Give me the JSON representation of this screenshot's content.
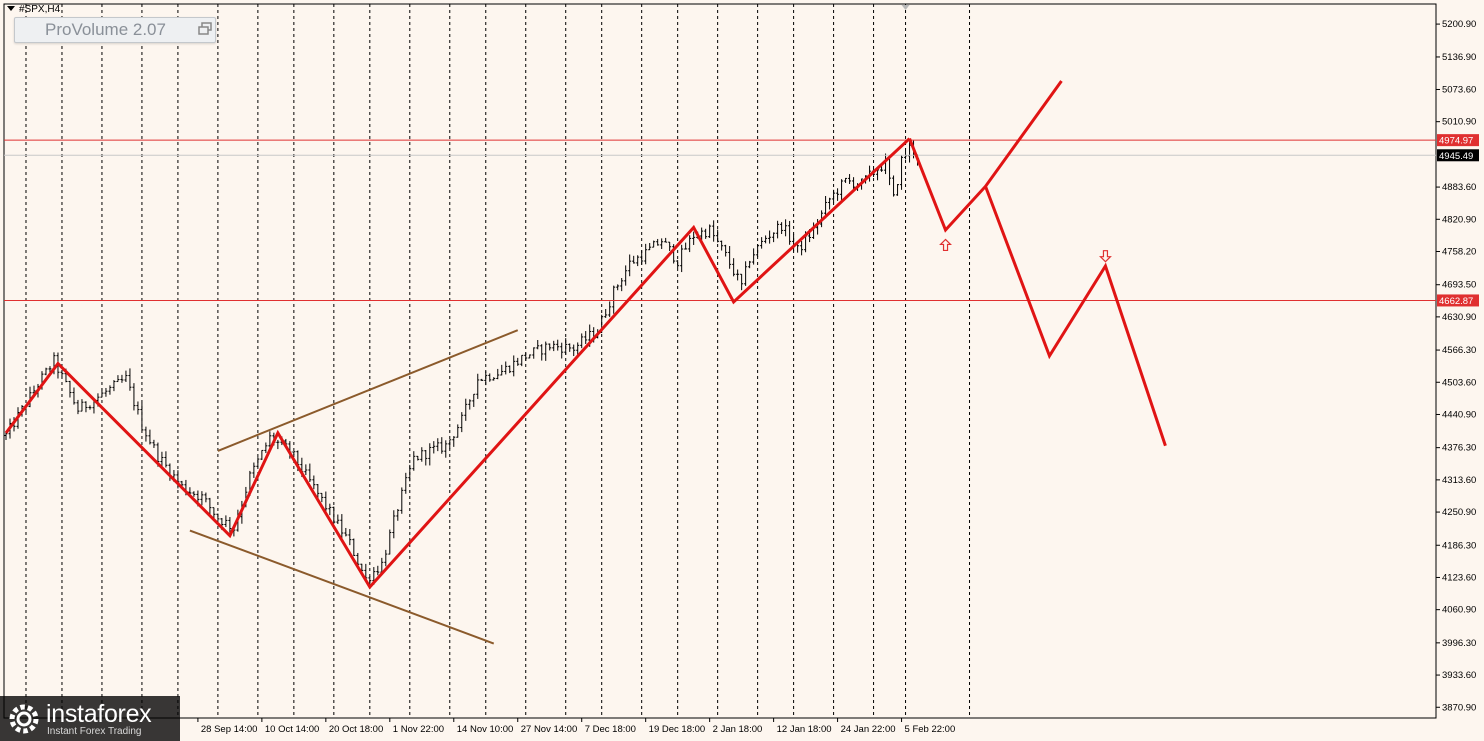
{
  "symbol": "#SPX,H4",
  "indicator": {
    "name": "ProVolume 2.07"
  },
  "logo": {
    "name": "instaforex",
    "tagline": "Instant Forex Trading"
  },
  "colors": {
    "background": "#fdf6ef",
    "candles": "#000000",
    "pattern": "#e01414",
    "channel": "#8b5a2b",
    "level_line": "#e03030",
    "current_price_line": "#c8c8c8",
    "level_badge": "#e03030",
    "price_badge": "#000000",
    "arrow": "#e03030"
  },
  "chart_data": {
    "type": "candlestick",
    "timeframe": "H4",
    "ylim": [
      3850,
      5240
    ],
    "y_ticks": [
      "5200.90",
      "5136.90",
      "5073.60",
      "5010.90",
      "4883.60",
      "4820.90",
      "4758.20",
      "4693.50",
      "4630.90",
      "4566.30",
      "4503.60",
      "4440.90",
      "4376.30",
      "4313.60",
      "4250.90",
      "4186.30",
      "4123.60",
      "4060.90",
      "3996.30",
      "3933.60",
      "3870.90"
    ],
    "x_labels": [
      "28 Sep 14:00",
      "10 Oct 14:00",
      "20 Oct 18:00",
      "1 Nov 22:00",
      "14 Nov 10:00",
      "27 Nov 14:00",
      "7 Dec 18:00",
      "19 Dec 18:00",
      "2 Jan 18:00",
      "12 Jan 18:00",
      "24 Jan 22:00",
      "5 Feb 22:00"
    ],
    "x_label_bars": [
      48,
      64,
      80,
      96,
      112,
      128,
      144,
      160,
      176,
      192,
      208,
      224
    ],
    "separator_bars": [
      5,
      14,
      24,
      34,
      43,
      53,
      63,
      72,
      82,
      91,
      101,
      111,
      120,
      130,
      140,
      149,
      159,
      168,
      178,
      188,
      197,
      207,
      217,
      225,
      241
    ],
    "levels": [
      {
        "price": 4974.97,
        "label": "4974.97"
      },
      {
        "price": 4662.87,
        "label": "4662.87"
      }
    ],
    "current_price": {
      "price": 4945.49,
      "label": "4945.49"
    },
    "price_path": [
      {
        "bar": 0,
        "price": 4400
      },
      {
        "bar": 8,
        "price": 4500
      },
      {
        "bar": 12,
        "price": 4545
      },
      {
        "bar": 18,
        "price": 4450
      },
      {
        "bar": 26,
        "price": 4490
      },
      {
        "bar": 30,
        "price": 4510
      },
      {
        "bar": 34,
        "price": 4420
      },
      {
        "bar": 38,
        "price": 4360
      },
      {
        "bar": 44,
        "price": 4300
      },
      {
        "bar": 49,
        "price": 4280
      },
      {
        "bar": 53,
        "price": 4240
      },
      {
        "bar": 57,
        "price": 4220
      },
      {
        "bar": 61,
        "price": 4320
      },
      {
        "bar": 66,
        "price": 4395
      },
      {
        "bar": 71,
        "price": 4370
      },
      {
        "bar": 76,
        "price": 4310
      },
      {
        "bar": 81,
        "price": 4250
      },
      {
        "bar": 86,
        "price": 4190
      },
      {
        "bar": 90,
        "price": 4120
      },
      {
        "bar": 94,
        "price": 4150
      },
      {
        "bar": 98,
        "price": 4260
      },
      {
        "bar": 102,
        "price": 4355
      },
      {
        "bar": 106,
        "price": 4370
      },
      {
        "bar": 110,
        "price": 4380
      },
      {
        "bar": 114,
        "price": 4430
      },
      {
        "bar": 118,
        "price": 4510
      },
      {
        "bar": 124,
        "price": 4525
      },
      {
        "bar": 130,
        "price": 4555
      },
      {
        "bar": 136,
        "price": 4575
      },
      {
        "bar": 142,
        "price": 4570
      },
      {
        "bar": 148,
        "price": 4605
      },
      {
        "bar": 152,
        "price": 4680
      },
      {
        "bar": 156,
        "price": 4735
      },
      {
        "bar": 160,
        "price": 4755
      },
      {
        "bar": 164,
        "price": 4780
      },
      {
        "bar": 168,
        "price": 4740
      },
      {
        "bar": 172,
        "price": 4790
      },
      {
        "bar": 176,
        "price": 4800
      },
      {
        "bar": 180,
        "price": 4750
      },
      {
        "bar": 184,
        "price": 4690
      },
      {
        "bar": 186,
        "price": 4745
      },
      {
        "bar": 190,
        "price": 4785
      },
      {
        "bar": 194,
        "price": 4810
      },
      {
        "bar": 198,
        "price": 4760
      },
      {
        "bar": 202,
        "price": 4800
      },
      {
        "bar": 206,
        "price": 4860
      },
      {
        "bar": 210,
        "price": 4895
      },
      {
        "bar": 214,
        "price": 4890
      },
      {
        "bar": 218,
        "price": 4920
      },
      {
        "bar": 220,
        "price": 4930
      },
      {
        "bar": 222,
        "price": 4860
      },
      {
        "bar": 224,
        "price": 4935
      },
      {
        "bar": 226,
        "price": 4960
      },
      {
        "bar": 228,
        "price": 4945
      }
    ],
    "zigzag": [
      {
        "bar": 0,
        "price": 4405
      },
      {
        "bar": 13,
        "price": 4540
      },
      {
        "bar": 56,
        "price": 4205
      },
      {
        "bar": 68,
        "price": 4405
      },
      {
        "bar": 91,
        "price": 4105
      },
      {
        "bar": 172,
        "price": 4805
      },
      {
        "bar": 182,
        "price": 4660
      },
      {
        "bar": 226,
        "price": 4978
      }
    ],
    "forecast": [
      {
        "bar": 226,
        "price": 4978
      },
      {
        "bar": 235,
        "price": 4800
      },
      {
        "bar": 245,
        "price": 4885
      },
      {
        "bar": 264,
        "price": 5090
      }
    ],
    "forecast_second": [
      {
        "bar": 245,
        "price": 4885
      },
      {
        "bar": 261,
        "price": 4555
      },
      {
        "bar": 275,
        "price": 4730
      },
      {
        "bar": 290,
        "price": 4380
      }
    ],
    "channel_upper": [
      {
        "bar": 53,
        "price": 4370
      },
      {
        "bar": 128,
        "price": 4605
      }
    ],
    "channel_lower": [
      {
        "bar": 46,
        "price": 4215
      },
      {
        "bar": 122,
        "price": 3995
      }
    ],
    "arrows": [
      {
        "direction": "up",
        "bar": 235,
        "price": 4770
      },
      {
        "direction": "down",
        "bar": 275,
        "price": 4750
      }
    ]
  }
}
